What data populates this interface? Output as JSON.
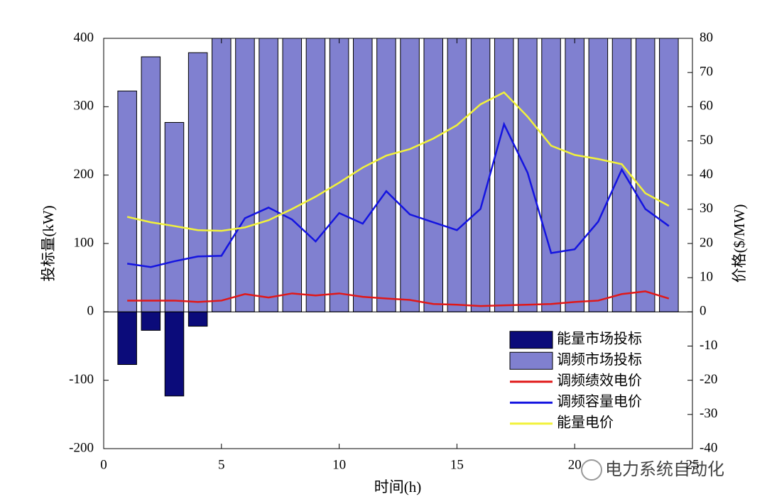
{
  "chart_data": {
    "type": "bar",
    "x": [
      1,
      2,
      3,
      4,
      5,
      6,
      7,
      8,
      9,
      10,
      11,
      12,
      13,
      14,
      15,
      16,
      17,
      18,
      19,
      20,
      21,
      22,
      23,
      24
    ],
    "xlabel": "时间(h)",
    "ylabel": "投标量(kW)",
    "y2label": "价格($/MW)",
    "xlim": [
      0,
      25
    ],
    "xticks": [
      0,
      5,
      10,
      15,
      20,
      25
    ],
    "ylim": [
      -200,
      400
    ],
    "yticks": [
      -200,
      -100,
      0,
      100,
      200,
      300,
      400
    ],
    "y2lim": [
      -40,
      80
    ],
    "y2ticks": [
      -40,
      -30,
      -20,
      -10,
      0,
      10,
      20,
      30,
      40,
      50,
      60,
      70,
      80
    ],
    "legend": "lower right",
    "watermark": "电力系统自动化",
    "series": [
      {
        "name": "能量市场投标",
        "type": "bar",
        "color": "#0b0b7a",
        "values": [
          -77,
          -27,
          -123,
          -21,
          0,
          0,
          0,
          0,
          0,
          0,
          0,
          0,
          0,
          0,
          0,
          0,
          0,
          0,
          0,
          0,
          0,
          0,
          0,
          0
        ]
      },
      {
        "name": "调频市场投标",
        "type": "bar",
        "color": "#8080d0",
        "values": [
          323,
          373,
          277,
          379,
          400,
          400,
          400,
          400,
          400,
          400,
          400,
          400,
          400,
          400,
          400,
          400,
          400,
          400,
          400,
          400,
          400,
          400,
          400,
          400
        ]
      },
      {
        "name": "调频绩效电价",
        "type": "line",
        "axis": "y2",
        "color": "#e01818",
        "values": [
          3.3,
          3.3,
          3.3,
          2.9,
          3.3,
          5.2,
          4.2,
          5.4,
          4.8,
          5.4,
          4.4,
          3.9,
          3.5,
          2.3,
          2.1,
          1.7,
          1.9,
          2.1,
          2.3,
          2.9,
          3.3,
          5.2,
          6.0,
          3.9
        ]
      },
      {
        "name": "调频容量电价",
        "type": "line",
        "axis": "y2",
        "color": "#1414e0",
        "values": [
          14.1,
          13.1,
          14.8,
          16.2,
          16.4,
          27.4,
          30.5,
          27.0,
          20.6,
          28.9,
          25.8,
          35.3,
          28.5,
          26.2,
          23.9,
          30.1,
          54.9,
          40.7,
          17.2,
          18.3,
          26.4,
          41.6,
          30.1,
          25.1
        ]
      },
      {
        "name": "能量电价",
        "type": "line",
        "axis": "y2",
        "color": "#f2f23a",
        "values": [
          27.8,
          26.2,
          25.1,
          23.9,
          23.7,
          24.7,
          26.8,
          30.1,
          33.7,
          37.8,
          42.2,
          45.7,
          47.6,
          50.7,
          54.6,
          60.7,
          64.2,
          57.1,
          48.6,
          45.9,
          44.7,
          43.2,
          34.7,
          31.0
        ]
      }
    ]
  }
}
